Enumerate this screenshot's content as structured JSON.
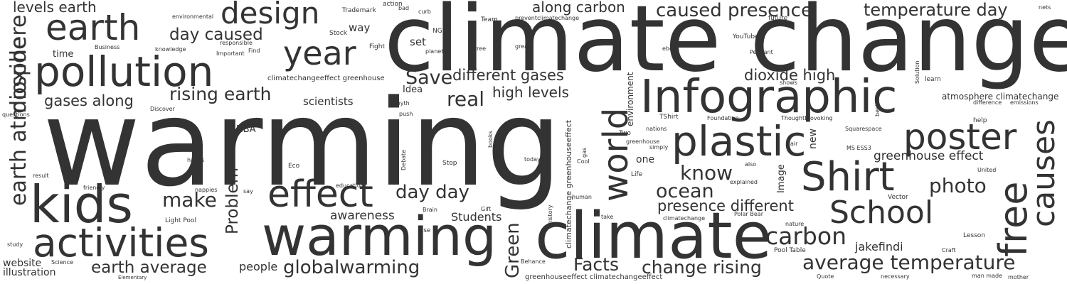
{
  "color": "#333333",
  "words": [
    "warming",
    "climate change",
    "climate",
    "warming",
    "Infographic",
    "kids",
    "pollution",
    "activities",
    "effect",
    "plastic",
    "Shirt",
    "earth",
    "design",
    "year",
    "poster",
    "School",
    "free",
    "causes",
    "world",
    "dioxide",
    "carbon",
    "earth atmosphere",
    "average temperature",
    "globalwarming",
    "Facts",
    "change rising",
    "earth average",
    "presence different",
    "ocean",
    "know",
    "photo",
    "Green",
    "Problem",
    "make",
    "day day",
    "caused presence",
    "temperature day",
    "levels earth",
    "rising earth",
    "different gases",
    "high levels",
    "dioxide high",
    "real",
    "gases along",
    "day caused",
    "along carbon",
    "greenhouse effect",
    "Save",
    "jakefindi",
    "awareness",
    "Students",
    "people",
    "scientists",
    "website",
    "illustration",
    "set",
    "way",
    "time",
    "Idea",
    "NBA",
    "one",
    "new",
    "Image",
    "environment",
    "atmosphere climatechange",
    "climatechange greenhouseeffect",
    "greenhouseeffect climatechangeeffect",
    "climatechangeeffect greenhouse",
    "preventclimatechange",
    "Trademark",
    "action",
    "bad",
    "curb",
    "NGSS",
    "Team",
    "future",
    "nets",
    "YouTube",
    "Pendant",
    "ebook",
    "Solution",
    "learn",
    "shows",
    "difference",
    "emissions",
    "help",
    "best",
    "Squarespace",
    "MS ESS3",
    "greenhouse",
    "nations",
    "TShirt",
    "Foundation",
    "ThoughtProvoking",
    "Two",
    "air",
    "simply",
    "gas",
    "Cool",
    "today",
    "books",
    "Stop",
    "Debate",
    "Eco",
    "Point",
    "hands",
    "result",
    "friendly",
    "nappies",
    "say",
    "education",
    "Gift",
    "Brain",
    "rise",
    "history",
    "human",
    "take",
    "climatechange",
    "Polar Bear",
    "nature",
    "Pool Table",
    "Craft",
    "Lesson",
    "Vector",
    "explained",
    "also",
    "United",
    "Life",
    "Light Pool",
    "study",
    "Science",
    "Elementary",
    "Behance",
    "Quote",
    "necessary",
    "man made",
    "mother",
    "questions",
    "Discover",
    "myth",
    "push",
    "environmental",
    "knowledge",
    "Business",
    "Important",
    "responsible",
    "Find",
    "Stock",
    "Fight",
    "planet",
    "tree",
    "great"
  ]
}
